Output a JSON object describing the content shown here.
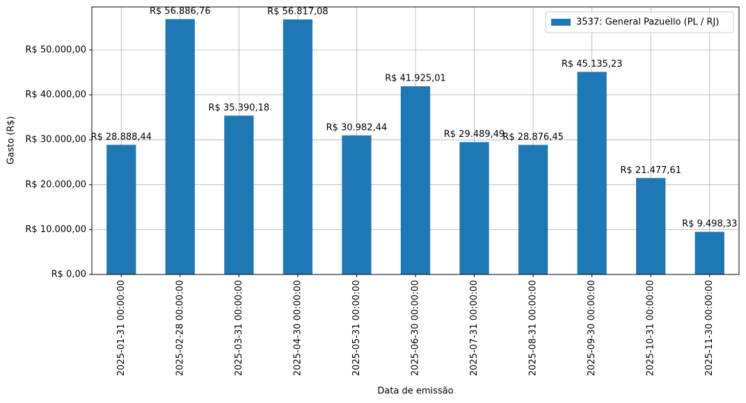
{
  "chart_data": {
    "type": "bar",
    "xlabel": "Data de emissão",
    "ylabel": "Gasto (R$)",
    "categories": [
      "2025-01-31 00:00:00",
      "2025-02-28 00:00:00",
      "2025-03-31 00:00:00",
      "2025-04-30 00:00:00",
      "2025-05-31 00:00:00",
      "2025-06-30 00:00:00",
      "2025-07-31 00:00:00",
      "2025-08-31 00:00:00",
      "2025-09-30 00:00:00",
      "2025-10-31 00:00:00",
      "2025-11-30 00:00:00"
    ],
    "series": [
      {
        "name": "3537: General Pazuello (PL / RJ)",
        "color": "#1f77b4",
        "values": [
          28888.44,
          56886.76,
          35390.18,
          56817.08,
          30982.44,
          41925.01,
          29489.49,
          28876.45,
          45135.23,
          21477.61,
          9498.33
        ],
        "value_labels": [
          "R$ 28.888,44",
          "R$ 56.886,76",
          "R$ 35.390,18",
          "R$ 56.817,08",
          "R$ 30.982,44",
          "R$ 41.925,01",
          "R$ 29.489,49",
          "R$ 28.876,45",
          "R$ 45.135,23",
          "R$ 21.477,61",
          "R$ 9.498,33"
        ]
      }
    ],
    "ylim": [
      0,
      59600
    ],
    "yticks": [
      {
        "value": 0,
        "label": "R$ 0,00"
      },
      {
        "value": 10000,
        "label": "R$ 10.000,00"
      },
      {
        "value": 20000,
        "label": "R$ 20.000,00"
      },
      {
        "value": 30000,
        "label": "R$ 30.000,00"
      },
      {
        "value": 40000,
        "label": "R$ 40.000,00"
      },
      {
        "value": 50000,
        "label": "R$ 50.000,00"
      }
    ],
    "grid": true,
    "legend": "upper right"
  }
}
